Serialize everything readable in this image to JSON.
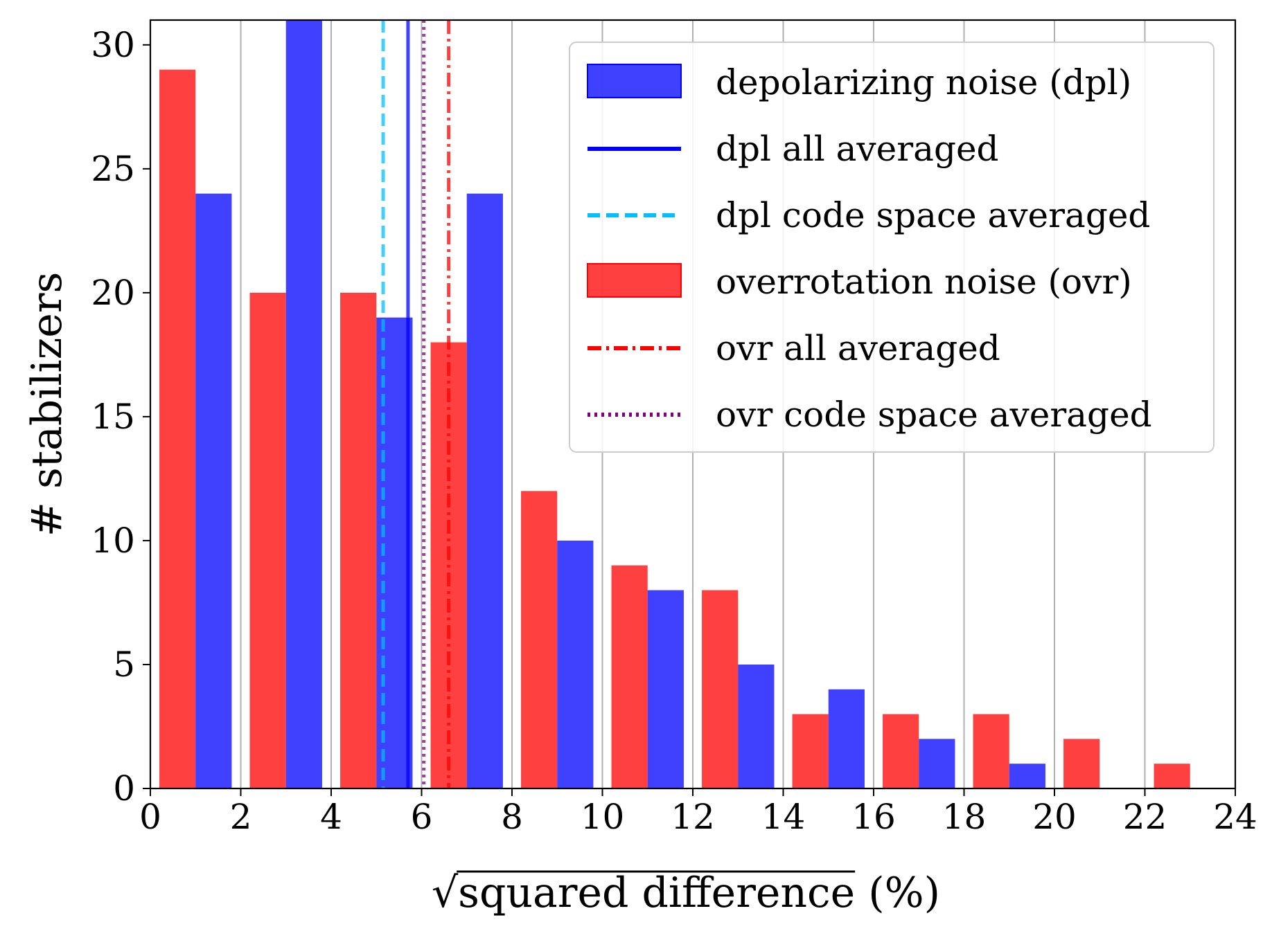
{
  "chart_data": {
    "type": "bar",
    "subtype": "grouped-histogram",
    "title": "",
    "xlabel": {
      "radical": "√",
      "term": "squared difference",
      "suffix": " (%)"
    },
    "ylabel": "# stabilizers",
    "xlim": [
      0,
      24
    ],
    "ylim": [
      0,
      31
    ],
    "xticks": [
      0,
      2,
      4,
      6,
      8,
      10,
      12,
      14,
      16,
      18,
      20,
      22,
      24
    ],
    "yticks": [
      0,
      5,
      10,
      15,
      20,
      25,
      30
    ],
    "grid": "vertical",
    "bin_width": 2,
    "colors": {
      "dpl": "#0000ff",
      "ovr": "#ff0000",
      "dpl_code": "#00bfff",
      "ovr_code": "#800080",
      "grid": "#b0b0b0"
    },
    "series": [
      {
        "key": "ovr",
        "name": "overrotation noise (ovr)",
        "bin_starts": [
          0.2,
          2.2,
          4.2,
          6.2,
          8.2,
          10.2,
          12.2,
          14.2,
          16.2,
          18.2,
          20.2,
          22.2
        ],
        "values": [
          29,
          20,
          20,
          18,
          12,
          9,
          8,
          3,
          3,
          3,
          2,
          1
        ]
      },
      {
        "key": "dpl",
        "name": "depolarizing noise (dpl)",
        "bin_starts": [
          1.0,
          3.0,
          5.0,
          7.0,
          9.0,
          11.0,
          13.0,
          15.0,
          17.0,
          19.0
        ],
        "values": [
          24,
          31,
          19,
          24,
          10,
          8,
          5,
          4,
          2,
          1
        ]
      }
    ],
    "vlines": [
      {
        "key": "dpl_all",
        "name": "dpl all averaged",
        "x": 5.7,
        "color": "#0000ff",
        "style": "solid"
      },
      {
        "key": "dpl_code",
        "name": "dpl code space averaged",
        "x": 5.15,
        "color": "#00bfff",
        "style": "dashed"
      },
      {
        "key": "ovr_all",
        "name": "ovr all averaged",
        "x": 6.6,
        "color": "#ff0000",
        "style": "dashdot"
      },
      {
        "key": "ovr_code",
        "name": "ovr code space averaged",
        "x": 6.05,
        "color": "#800080",
        "style": "dotted"
      }
    ],
    "legend": {
      "location": "top-right",
      "entries": [
        {
          "label": "depolarizing noise (dpl)",
          "kind": "patch",
          "color": "#0000ff",
          "style": "solid"
        },
        {
          "label": "dpl all averaged",
          "kind": "line",
          "color": "#0000ff",
          "style": "solid"
        },
        {
          "label": "dpl code space averaged",
          "kind": "line",
          "color": "#00bfff",
          "style": "dashed"
        },
        {
          "label": "overrotation noise (ovr)",
          "kind": "patch",
          "color": "#ff0000",
          "style": "solid"
        },
        {
          "label": "ovr all averaged",
          "kind": "line",
          "color": "#ff0000",
          "style": "dashdot"
        },
        {
          "label": "ovr code space averaged",
          "kind": "line",
          "color": "#800080",
          "style": "dotted"
        }
      ]
    }
  }
}
